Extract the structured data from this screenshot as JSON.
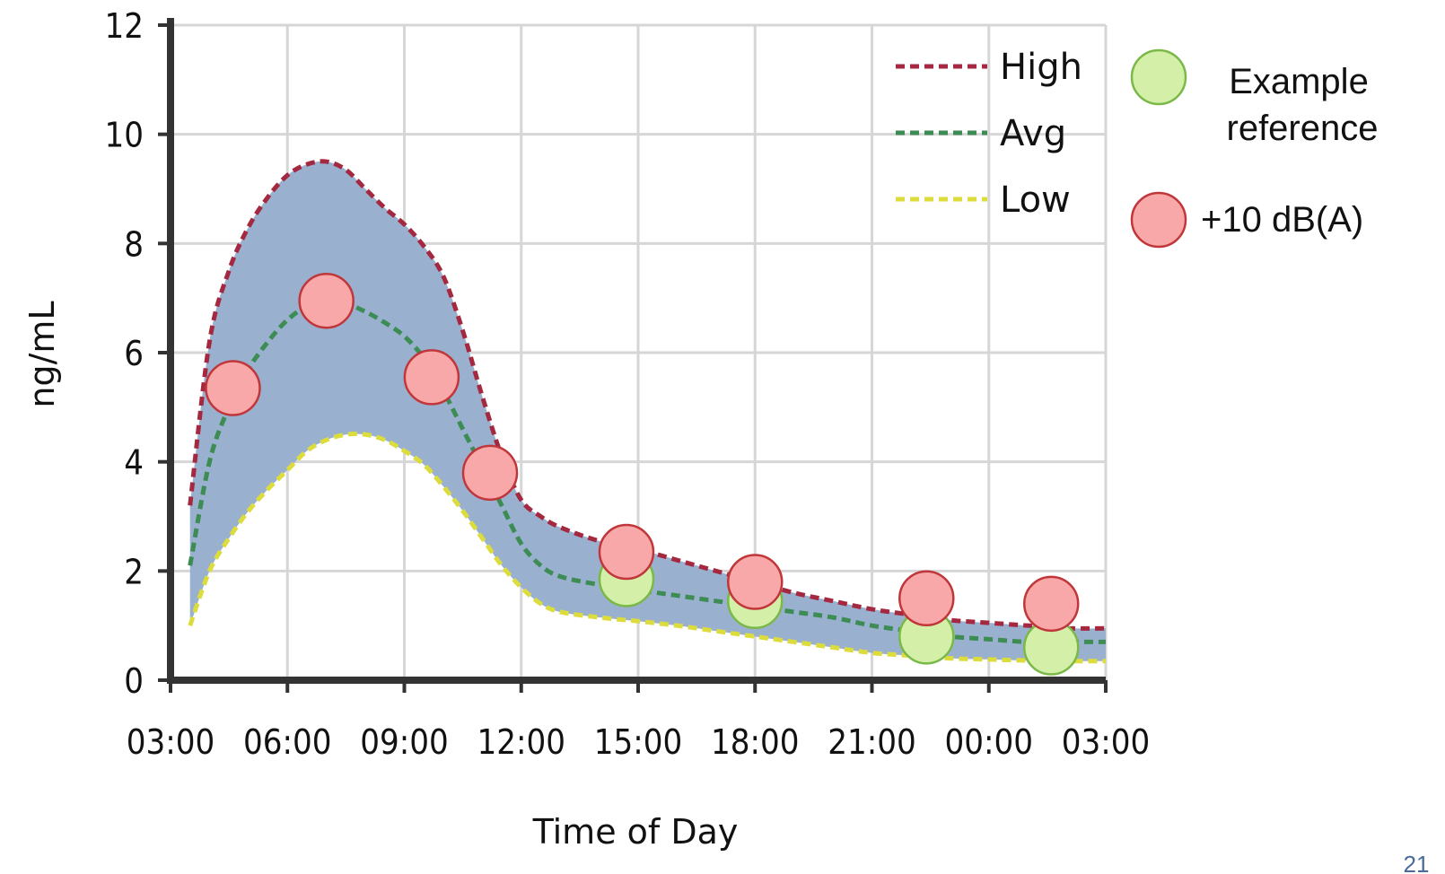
{
  "chart_data": {
    "type": "line",
    "xlabel": "Time of Day",
    "ylabel": "ng/mL",
    "xlim": [
      3,
      27
    ],
    "ylim": [
      0,
      12
    ],
    "x_ticks": [
      3,
      6,
      9,
      12,
      15,
      18,
      21,
      24,
      27
    ],
    "x_tick_labels": [
      "03:00",
      "06:00",
      "09:00",
      "12:00",
      "15:00",
      "18:00",
      "21:00",
      "00:00",
      "03:00"
    ],
    "y_ticks": [
      0,
      2,
      4,
      6,
      8,
      10,
      12
    ],
    "y_tick_labels": [
      "0",
      "2",
      "4",
      "6",
      "8",
      "10",
      "12"
    ],
    "grid": true,
    "legend_position": "top-right",
    "band_color": "#9ab0cf",
    "series": [
      {
        "name": "High",
        "color": "#a4283f",
        "style": "dashed",
        "x": [
          3.5,
          4.0,
          4.5,
          5.0,
          5.5,
          6.0,
          6.5,
          7.0,
          7.5,
          8.0,
          8.5,
          9.0,
          9.5,
          10.0,
          10.5,
          11.0,
          11.5,
          12.0,
          12.5,
          13.0,
          14.0,
          15.0,
          16.0,
          17.0,
          18.0,
          19.0,
          20.0,
          21.0,
          22.0,
          23.0,
          24.0,
          25.0,
          26.0,
          27.0
        ],
        "y": [
          3.2,
          6.2,
          7.5,
          8.3,
          8.85,
          9.25,
          9.45,
          9.5,
          9.35,
          9.0,
          8.65,
          8.35,
          7.95,
          7.4,
          6.4,
          5.2,
          4.1,
          3.3,
          3.0,
          2.8,
          2.55,
          2.4,
          2.2,
          2.0,
          1.8,
          1.6,
          1.45,
          1.3,
          1.2,
          1.1,
          1.05,
          1.0,
          0.95,
          0.95
        ]
      },
      {
        "name": "Avg",
        "color": "#3c8c54",
        "style": "dashed",
        "x": [
          3.5,
          4.0,
          4.5,
          5.0,
          5.5,
          6.0,
          6.5,
          7.0,
          7.5,
          8.0,
          8.5,
          9.0,
          9.5,
          10.0,
          10.5,
          11.0,
          11.5,
          12.0,
          12.5,
          13.0,
          14.0,
          15.0,
          16.0,
          17.0,
          18.0,
          19.0,
          20.0,
          21.0,
          22.0,
          23.0,
          24.0,
          25.0,
          26.0,
          27.0
        ],
        "y": [
          2.1,
          4.0,
          5.0,
          5.7,
          6.2,
          6.6,
          6.85,
          6.95,
          6.9,
          6.75,
          6.55,
          6.3,
          5.9,
          5.3,
          4.6,
          3.9,
          3.2,
          2.5,
          2.1,
          1.9,
          1.75,
          1.65,
          1.55,
          1.45,
          1.35,
          1.25,
          1.15,
          1.0,
          0.9,
          0.8,
          0.75,
          0.7,
          0.7,
          0.7
        ]
      },
      {
        "name": "Low",
        "color": "#dcdc3c",
        "style": "dashed",
        "x": [
          3.5,
          4.0,
          4.5,
          5.0,
          5.5,
          6.0,
          6.5,
          7.0,
          7.5,
          8.0,
          8.5,
          9.0,
          9.5,
          10.0,
          10.5,
          11.0,
          11.5,
          12.0,
          12.5,
          13.0,
          14.0,
          15.0,
          16.0,
          17.0,
          18.0,
          19.0,
          20.0,
          21.0,
          22.0,
          23.0,
          24.0,
          25.0,
          26.0,
          27.0
        ],
        "y": [
          1.0,
          2.0,
          2.6,
          3.1,
          3.5,
          3.85,
          4.2,
          4.4,
          4.5,
          4.5,
          4.4,
          4.2,
          3.95,
          3.55,
          3.1,
          2.6,
          2.1,
          1.7,
          1.4,
          1.25,
          1.15,
          1.08,
          1.0,
          0.9,
          0.8,
          0.7,
          0.6,
          0.5,
          0.45,
          0.4,
          0.38,
          0.36,
          0.35,
          0.35
        ]
      }
    ],
    "markers": [
      {
        "name": "Example reference",
        "fill": "#d4f0a8",
        "stroke": "#7ab848",
        "points": [
          [
            14.7,
            1.85
          ],
          [
            18.0,
            1.45
          ],
          [
            22.4,
            0.8
          ],
          [
            25.6,
            0.6
          ]
        ]
      },
      {
        "name": "+10 dB(A)",
        "fill": "#f8a8a8",
        "stroke": "#c0363a",
        "points": [
          [
            4.6,
            5.35
          ],
          [
            7.0,
            6.95
          ],
          [
            9.7,
            5.55
          ],
          [
            11.2,
            3.8
          ],
          [
            14.7,
            2.35
          ],
          [
            18.0,
            1.8
          ],
          [
            22.4,
            1.5
          ],
          [
            25.6,
            1.4
          ]
        ]
      }
    ]
  },
  "side_legend": {
    "items": [
      {
        "label_lines": [
          "Example",
          "reference"
        ]
      },
      {
        "label_lines": [
          "+10 dB(A)"
        ]
      }
    ]
  },
  "page_number": "21"
}
